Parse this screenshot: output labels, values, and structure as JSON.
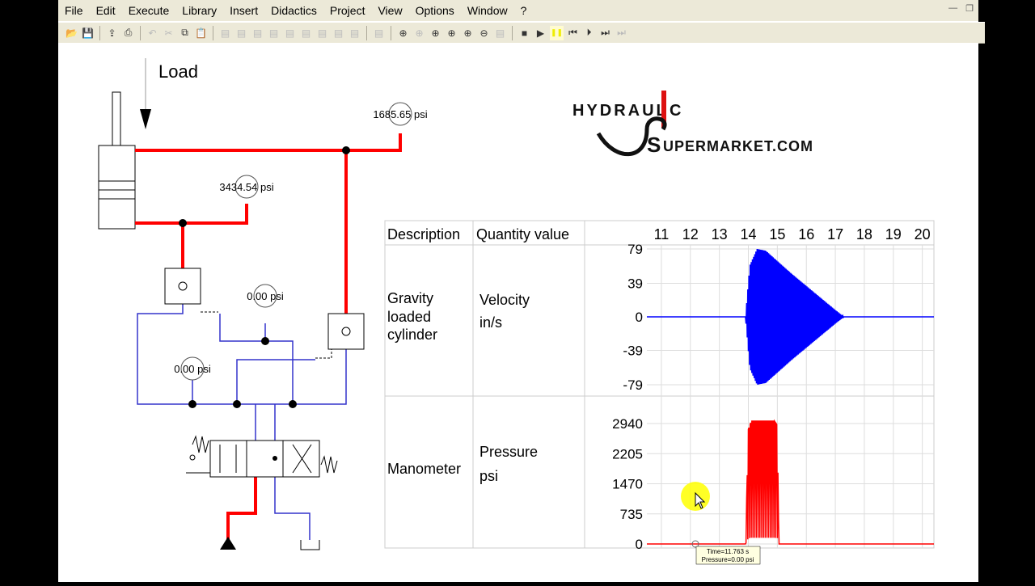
{
  "menu": [
    "File",
    "Edit",
    "Execute",
    "Library",
    "Insert",
    "Didactics",
    "Project",
    "View",
    "Options",
    "Window",
    "?"
  ],
  "window_controls": [
    "minimize-icon",
    "restore-icon"
  ],
  "toolbar": [
    "open",
    "save",
    "export",
    "print",
    "undo",
    "cut",
    "copy",
    "paste",
    "align-left",
    "align-center",
    "align-right",
    "align-top",
    "align-middle",
    "align-bottom",
    "distribute-h",
    "distribute-v",
    "distribute",
    "grid",
    "zoom-1to1",
    "zoom-fit",
    "zoom-window",
    "zoom-page",
    "zoom-in",
    "zoom-out",
    "properties",
    "stop",
    "play",
    "pause",
    "rewind",
    "step-forward",
    "forward",
    "fast-forward"
  ],
  "circuit": {
    "load_label": "Load",
    "gauges": [
      "1685.65 psi",
      "3434.54 psi",
      "0.00 psi",
      "0.00 psi"
    ]
  },
  "logo": {
    "text1": "HYDRAULIC",
    "text2": "SUPERMARKET.COM"
  },
  "table": {
    "headers": [
      "Description",
      "Quantity value"
    ],
    "rows": [
      {
        "description": [
          "Gravity",
          "loaded",
          "cylinder"
        ],
        "quantity": [
          "Velocity",
          "in/s"
        ]
      },
      {
        "description": [
          "Manometer"
        ],
        "quantity": [
          "Pressure",
          "psi"
        ]
      }
    ]
  },
  "tooltip": {
    "line1": "Time=11.763 s",
    "line2": "Pressure=0.00 psi"
  },
  "chart_data": [
    {
      "type": "line",
      "xlabel": "",
      "ylabel": "",
      "x_ticks": [
        11,
        12,
        13,
        14,
        15,
        16,
        17,
        18,
        19,
        20
      ],
      "xlim": [
        10.5,
        20.4
      ],
      "y_ticks": [
        79,
        39,
        0,
        -39,
        -79
      ],
      "ylim": [
        -79,
        79
      ],
      "color": "#0000ff",
      "grid": true,
      "description": "oscillating, envelope",
      "envelope": {
        "t": [
          10.5,
          13.9,
          14.05,
          14.3,
          14.6,
          15.0,
          15.5,
          16.0,
          16.5,
          17.0,
          17.3,
          20.4
        ],
        "amp": [
          0,
          0,
          60,
          79,
          77,
          65,
          50,
          36,
          22,
          8,
          0,
          0
        ]
      }
    },
    {
      "type": "line",
      "x_ticks": [
        11,
        12,
        13,
        14,
        15,
        16,
        17,
        18,
        19,
        20
      ],
      "xlim": [
        10.5,
        20.4
      ],
      "y_ticks": [
        2940,
        2205,
        1470,
        735,
        0
      ],
      "ylim": [
        0,
        3000
      ],
      "color": "#ff0000",
      "grid": true,
      "envelope": {
        "t": [
          10.5,
          13.9,
          14.0,
          14.1,
          14.9,
          15.0,
          15.05,
          20.4
        ],
        "max": [
          0,
          0,
          2800,
          3000,
          3000,
          2900,
          0,
          0
        ]
      }
    }
  ],
  "colors": {
    "pressure_line": "#ff0000",
    "low_line": "#3333cc",
    "velocity": "#0000ff"
  }
}
